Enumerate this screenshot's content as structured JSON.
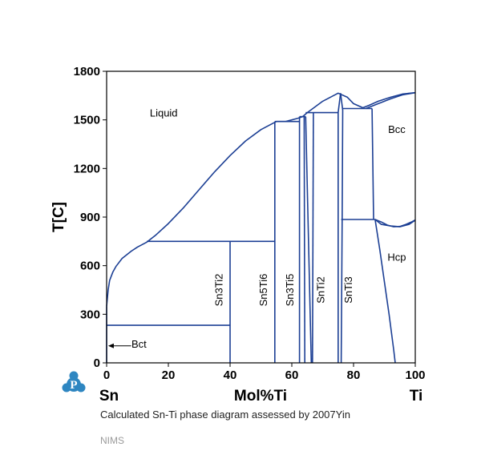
{
  "colors": {
    "boundary": "#1c3f94",
    "axis": "#000000",
    "logo": "#2e86c1"
  },
  "icons": {
    "logo": "nims-p-logo-icon"
  },
  "caption": "Calculated Sn-Ti phase diagram assessed by 2007Yin",
  "source": "NIMS",
  "chart_data": {
    "type": "phase-diagram",
    "title": "",
    "xlabel": "Mol%Ti",
    "ylabel": "T[C]",
    "x_left_label": "Sn",
    "x_right_label": "Ti",
    "xlim": [
      0,
      100
    ],
    "ylim": [
      0,
      1800
    ],
    "xticks": [
      0,
      20,
      40,
      60,
      80,
      100
    ],
    "yticks": [
      0,
      300,
      600,
      900,
      1200,
      1500,
      1800
    ],
    "grid": false,
    "boundaries": [
      {
        "name": "liquidus-sn-rich",
        "points": [
          [
            0,
            350
          ],
          [
            0.5,
            450
          ],
          [
            1,
            510
          ],
          [
            2,
            560
          ],
          [
            3,
            595
          ],
          [
            5,
            645
          ],
          [
            8,
            690
          ],
          [
            10,
            715
          ],
          [
            13,
            745
          ],
          [
            16,
            790
          ],
          [
            20,
            860
          ],
          [
            25,
            960
          ],
          [
            30,
            1070
          ],
          [
            35,
            1180
          ],
          [
            40,
            1280
          ],
          [
            45,
            1370
          ],
          [
            50,
            1440
          ],
          [
            53,
            1470
          ],
          [
            55,
            1490
          ],
          [
            58,
            1490
          ],
          [
            62,
            1510
          ],
          [
            63.5,
            1520
          ]
        ]
      },
      {
        "name": "liquidus-ti-rich",
        "points": [
          [
            63.5,
            1520
          ],
          [
            65,
            1545
          ],
          [
            70,
            1615
          ],
          [
            75,
            1665
          ],
          [
            78,
            1640
          ],
          [
            80,
            1600
          ],
          [
            83,
            1575
          ],
          [
            85,
            1590
          ],
          [
            88,
            1615
          ],
          [
            92,
            1640
          ],
          [
            96,
            1660
          ],
          [
            100,
            1668
          ]
        ]
      },
      {
        "name": "bcc-upper-boundary",
        "points": [
          [
            84,
            1570
          ],
          [
            88,
            1600
          ],
          [
            92,
            1630
          ],
          [
            96,
            1655
          ],
          [
            100,
            1668
          ]
        ]
      },
      {
        "name": "bcc-hcp-transus-upper",
        "points": [
          [
            87,
            885
          ],
          [
            89,
            870
          ],
          [
            91,
            850
          ],
          [
            93,
            840
          ],
          [
            95,
            842
          ],
          [
            97,
            855
          ],
          [
            99,
            872
          ],
          [
            100,
            882
          ]
        ]
      },
      {
        "name": "bcc-hcp-transus-lower",
        "points": [
          [
            76,
            885
          ],
          [
            84,
            885
          ],
          [
            87,
            885
          ],
          [
            89,
            855
          ],
          [
            92,
            845
          ],
          [
            95,
            840
          ],
          [
            98,
            855
          ],
          [
            100,
            880
          ]
        ]
      },
      {
        "name": "hcp-solvus",
        "points": [
          [
            87,
            885
          ],
          [
            88.5,
            700
          ],
          [
            90,
            500
          ],
          [
            91.5,
            300
          ],
          [
            93,
            80
          ],
          [
            93.5,
            0
          ]
        ]
      },
      {
        "name": "sn3ti2-line",
        "points": [
          [
            40,
            0
          ],
          [
            40,
            750
          ]
        ]
      },
      {
        "name": "sn5ti6-line",
        "points": [
          [
            54.5,
            0
          ],
          [
            54.5,
            1490
          ]
        ]
      },
      {
        "name": "sn3ti5-left",
        "points": [
          [
            62.5,
            0
          ],
          [
            62.5,
            1520
          ]
        ]
      },
      {
        "name": "sn3ti5-right",
        "points": [
          [
            64.2,
            0
          ],
          [
            64,
            1520
          ]
        ]
      },
      {
        "name": "sntiz-wedge-left",
        "points": [
          [
            64.5,
            1520
          ],
          [
            66.3,
            0
          ]
        ]
      },
      {
        "name": "sntiz-wedge-right",
        "points": [
          [
            67,
            1545
          ],
          [
            66.7,
            0
          ]
        ]
      },
      {
        "name": "snti2-right",
        "points": [
          [
            67,
            1545
          ],
          [
            75,
            1545
          ]
        ]
      },
      {
        "name": "snti3-left",
        "points": [
          [
            75,
            0
          ],
          [
            75,
            1545
          ],
          [
            75.8,
            1665
          ]
        ]
      },
      {
        "name": "snti3-wedge",
        "points": [
          [
            75.8,
            1665
          ],
          [
            76.5,
            1560
          ],
          [
            76.3,
            885
          ],
          [
            76,
            0
          ]
        ]
      },
      {
        "name": "snti3-cap",
        "points": [
          [
            76.5,
            1570
          ],
          [
            86,
            1570
          ]
        ]
      },
      {
        "name": "bcc-left-boundary",
        "points": [
          [
            86,
            1570
          ],
          [
            86.5,
            885
          ]
        ]
      },
      {
        "name": "eutectic-750",
        "points": [
          [
            13,
            750
          ],
          [
            54.5,
            750
          ]
        ]
      },
      {
        "name": "invariant-1490",
        "points": [
          [
            54.5,
            1490
          ],
          [
            62.5,
            1490
          ]
        ]
      },
      {
        "name": "invariant-1520",
        "points": [
          [
            62.5,
            1520
          ],
          [
            64.5,
            1520
          ]
        ]
      },
      {
        "name": "invariant-1545",
        "points": [
          [
            64.5,
            1545
          ],
          [
            67,
            1545
          ]
        ]
      },
      {
        "name": "bct-line-232",
        "points": [
          [
            0,
            232
          ],
          [
            40,
            232
          ]
        ]
      },
      {
        "name": "sn-axis-left",
        "points": [
          [
            0,
            0
          ],
          [
            0,
            350
          ]
        ]
      }
    ],
    "phase_labels": [
      {
        "text": "Liquid",
        "x": 18.5,
        "y": 1520,
        "rotate": false
      },
      {
        "text": "Bcc",
        "x": 94,
        "y": 1420,
        "rotate": false
      },
      {
        "text": "Hcp",
        "x": 94,
        "y": 630,
        "rotate": false
      },
      {
        "text": "Bct",
        "x": 10.5,
        "y": 95,
        "rotate": false
      },
      {
        "text": "Sn3Ti2",
        "x": 37.5,
        "y": 450,
        "rotate": true
      },
      {
        "text": "Sn5Ti6",
        "x": 52,
        "y": 450,
        "rotate": true
      },
      {
        "text": "Sn3Ti5",
        "x": 60.5,
        "y": 450,
        "rotate": true
      },
      {
        "text": "SnTi2",
        "x": 70.5,
        "y": 450,
        "rotate": true
      },
      {
        "text": "SnTi3",
        "x": 79.5,
        "y": 450,
        "rotate": true
      }
    ],
    "annotations": [
      {
        "type": "arrow",
        "from": [
          9,
          105
        ],
        "to": [
          0.5,
          105
        ],
        "label": "Bct"
      }
    ]
  }
}
